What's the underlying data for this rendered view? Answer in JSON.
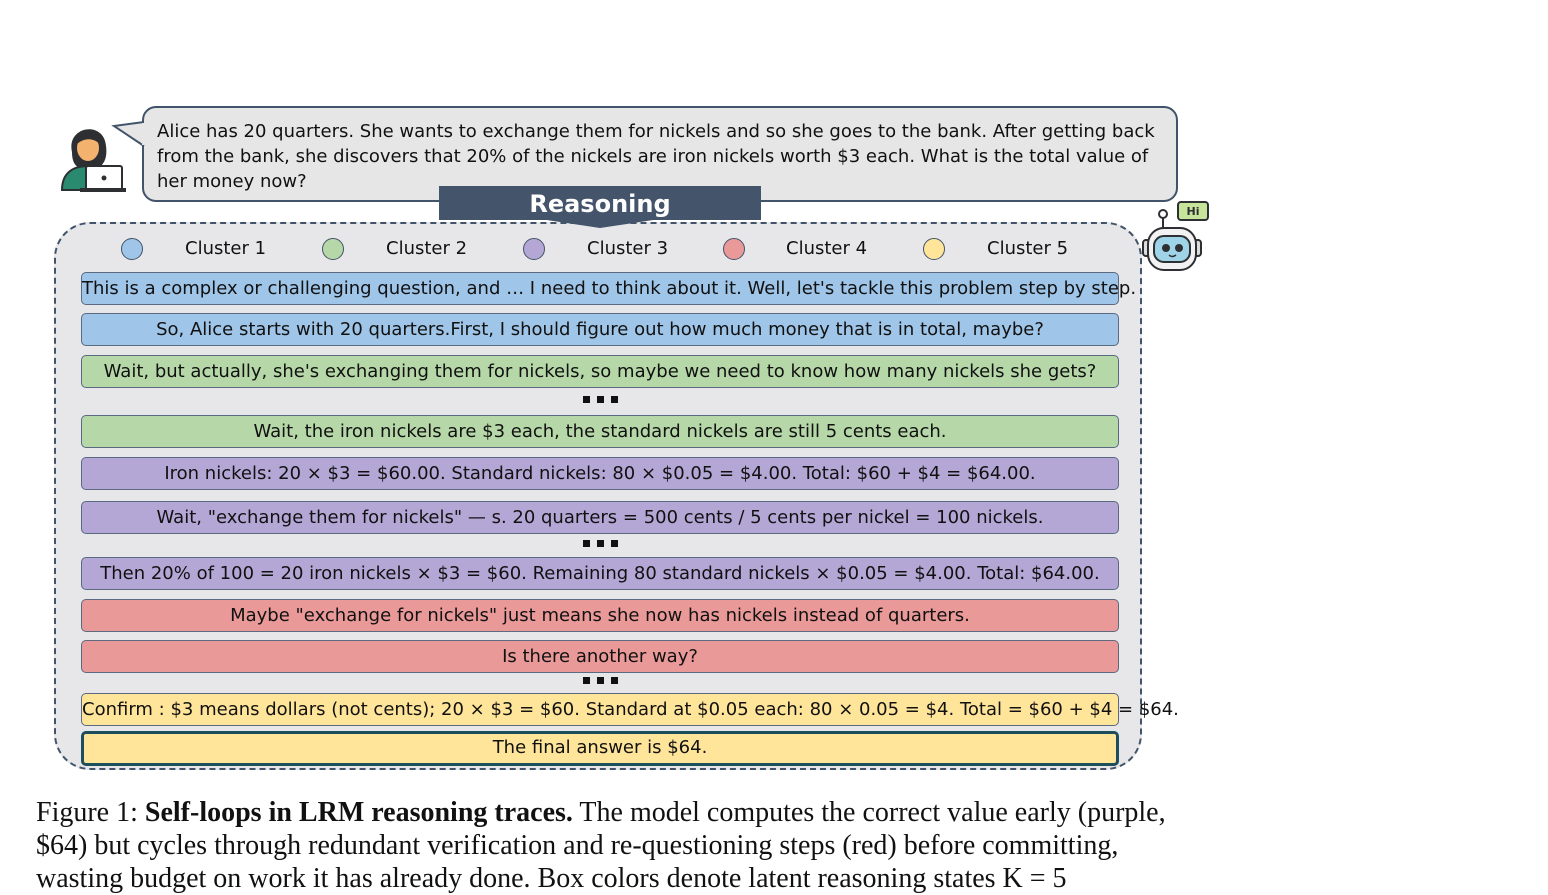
{
  "question": "Alice has 20 quarters. She wants to exchange them for nickels and so she goes to the bank. After getting back from the bank, she discovers that 20% of the nickels are iron nickels worth $3 each. What is the total value of her money now?",
  "banner": "Reasoning",
  "robot_badge": "Hi",
  "legend": [
    {
      "label": "Cluster 1",
      "color": "#9fc5e8"
    },
    {
      "label": "Cluster 2",
      "color": "#b6d7a8"
    },
    {
      "label": "Cluster 3",
      "color": "#b4a7d6"
    },
    {
      "label": "Cluster 4",
      "color": "#ea9999"
    },
    {
      "label": "Cluster 5",
      "color": "#ffe599"
    }
  ],
  "steps": [
    {
      "text": "This is a complex or challenging question, and … I need to think about it. Well, let's tackle this problem step by step.",
      "cluster": 1
    },
    {
      "text": "So, Alice starts with 20 quarters.First, I should figure out how much money that is in total, maybe?",
      "cluster": 1
    },
    {
      "text": "Wait, but actually, she's exchanging them for nickels, so maybe we need to know how many nickels she gets?",
      "cluster": 2
    },
    {
      "text": "Wait, the iron nickels are $3 each, the standard nickels are still 5 cents each.",
      "cluster": 2
    },
    {
      "text": "Iron nickels: 20 × $3 = $60.00. Standard nickels: 80 × $0.05 = $4.00. Total: $60 + $4 = $64.00.",
      "cluster": 3
    },
    {
      "text": "Wait, \"exchange them for nickels\" — s. 20 quarters = 500 cents / 5 cents per nickel = 100 nickels.",
      "cluster": 3
    },
    {
      "text": "Then 20% of 100 = 20 iron nickels × $3 = $60. Remaining 80 standard nickels × $0.05 = $4.00. Total: $64.00.",
      "cluster": 3
    },
    {
      "text": "Maybe \"exchange for nickels\" just means she now has nickels instead of quarters.",
      "cluster": 4
    },
    {
      "text": "Is there another way?",
      "cluster": 4
    },
    {
      "text": "Confirm : $3 means dollars (not cents); 20 × $3 = $60. Standard at $0.05 each: 80 × 0.05 = $4. Total = $60 + $4 = $64.",
      "cluster": 5
    },
    {
      "text": "The final answer is $64.",
      "cluster": 5
    }
  ],
  "caption": {
    "prefix": "Figure 1: ",
    "bold": "Self-loops in LRM reasoning traces.",
    "line1_rest": " The model computes the correct value early (purple,",
    "line2": "$64) but cycles through redundant verification and re-questioning steps (red) before committing,",
    "line3": "wasting budget on work it has already done.  Box colors denote latent reasoning states K = 5"
  }
}
